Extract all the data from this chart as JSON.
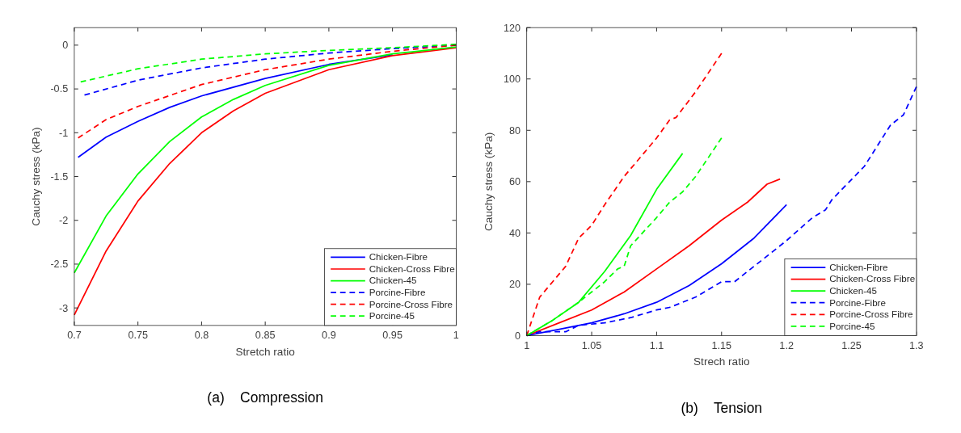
{
  "chart_data": [
    {
      "type": "line",
      "title": "(a)    Compression",
      "xlabel": "Stretch ratio",
      "ylabel": "Cauchy stress (kPa)",
      "xlim": [
        0.7,
        1
      ],
      "xticks": [
        0.7,
        0.75,
        0.8,
        0.85,
        0.9,
        0.95,
        1
      ],
      "ylim": [
        -3.2,
        0.2
      ],
      "yticks": [
        -3,
        -2.5,
        -2,
        -1.5,
        -1,
        -0.5,
        0
      ],
      "legend": "bottom right",
      "grid": false,
      "series": [
        {
          "name": "Chicken-Fibre",
          "color": "#0000ff",
          "line_style": "solid",
          "x": [
            0.703,
            0.725,
            0.75,
            0.775,
            0.8,
            0.85,
            0.9,
            0.95
          ],
          "values": [
            -1.28,
            -1.05,
            -0.87,
            -0.71,
            -0.58,
            -0.38,
            -0.22,
            -0.11
          ]
        },
        {
          "name": "Chicken-Cross Fibre",
          "color": "#ff0000",
          "line_style": "solid",
          "x": [
            0.7,
            0.725,
            0.75,
            0.775,
            0.8,
            0.825,
            0.85,
            0.9,
            0.95,
            1
          ],
          "values": [
            -3.08,
            -2.35,
            -1.78,
            -1.35,
            -1.0,
            -0.75,
            -0.55,
            -0.28,
            -0.12,
            -0.03
          ]
        },
        {
          "name": "Chicken-45",
          "color": "#00ff00",
          "line_style": "solid",
          "x": [
            0.7,
            0.725,
            0.75,
            0.775,
            0.8,
            0.825,
            0.85,
            0.9,
            0.95,
            1
          ],
          "values": [
            -2.6,
            -1.95,
            -1.47,
            -1.1,
            -0.82,
            -0.62,
            -0.46,
            -0.23,
            -0.1,
            -0.02
          ]
        },
        {
          "name": "Porcine-Fibre",
          "color": "#0000ff",
          "line_style": "dashed",
          "x": [
            0.708,
            0.75,
            0.8,
            0.85,
            0.9,
            0.95,
            1
          ],
          "values": [
            -0.57,
            -0.4,
            -0.26,
            -0.16,
            -0.09,
            -0.04,
            0
          ]
        },
        {
          "name": "Porcine-Cross Fibre",
          "color": "#ff0000",
          "line_style": "dashed",
          "x": [
            0.703,
            0.725,
            0.75,
            0.8,
            0.85,
            0.9,
            0.95,
            1
          ],
          "values": [
            -1.06,
            -0.85,
            -0.7,
            -0.45,
            -0.28,
            -0.16,
            -0.07,
            0
          ]
        },
        {
          "name": "Porcine-45",
          "color": "#00ff00",
          "line_style": "dashed",
          "x": [
            0.705,
            0.75,
            0.8,
            0.85,
            0.9,
            0.95,
            1
          ],
          "values": [
            -0.42,
            -0.27,
            -0.16,
            -0.1,
            -0.06,
            -0.03,
            0.01
          ]
        }
      ]
    },
    {
      "type": "line",
      "title": "(b)    Tension",
      "xlabel": "Strech ratio",
      "ylabel": "Cauchy stress (kPa)",
      "xlim": [
        1,
        1.3
      ],
      "xticks": [
        1,
        1.05,
        1.1,
        1.15,
        1.2,
        1.25,
        1.3
      ],
      "ylim": [
        0,
        120
      ],
      "yticks": [
        0,
        20,
        40,
        60,
        80,
        100,
        120
      ],
      "legend": "bottom right",
      "grid": false,
      "series": [
        {
          "name": "Chicken-Fibre",
          "color": "#0000ff",
          "line_style": "solid",
          "x": [
            1,
            1.025,
            1.05,
            1.075,
            1.1,
            1.125,
            1.15,
            1.175,
            1.2
          ],
          "values": [
            0,
            2.5,
            5,
            8.5,
            13,
            19.5,
            28,
            38,
            51
          ]
        },
        {
          "name": "Chicken-Cross Fibre",
          "color": "#ff0000",
          "line_style": "solid",
          "x": [
            1,
            1.025,
            1.05,
            1.075,
            1.1,
            1.125,
            1.15,
            1.17,
            1.185,
            1.195
          ],
          "values": [
            0,
            5,
            10,
            17,
            26,
            35,
            45,
            52,
            59,
            61
          ]
        },
        {
          "name": "Chicken-45",
          "color": "#00ff00",
          "line_style": "solid",
          "x": [
            1,
            1.02,
            1.04,
            1.06,
            1.08,
            1.1,
            1.12
          ],
          "values": [
            0,
            6,
            13,
            25,
            39,
            57,
            71
          ]
        },
        {
          "name": "Porcine-Fibre",
          "color": "#0000ff",
          "line_style": "dashed",
          "x": [
            1,
            1.01,
            1.03,
            1.04,
            1.06,
            1.08,
            1.1,
            1.11,
            1.13,
            1.15,
            1.16,
            1.18,
            1.2,
            1.22,
            1.23,
            1.235,
            1.26,
            1.28,
            1.29,
            1.3
          ],
          "values": [
            0,
            1.5,
            1.5,
            4,
            5,
            7,
            10,
            11,
            15,
            21,
            21,
            29,
            37,
            46,
            49,
            53,
            66,
            82,
            86,
            97
          ]
        },
        {
          "name": "Porcine-Cross Fibre",
          "color": "#ff0000",
          "line_style": "dashed",
          "x": [
            1,
            1.01,
            1.02,
            1.03,
            1.04,
            1.05,
            1.06,
            1.075,
            1.09,
            1.1,
            1.11,
            1.115,
            1.13,
            1.15
          ],
          "values": [
            0,
            15,
            21,
            27,
            38,
            43,
            51,
            62,
            71,
            77,
            84,
            85,
            95,
            110
          ]
        },
        {
          "name": "Porcine-45",
          "color": "#00ff00",
          "line_style": "dashed",
          "x": [
            1,
            1.02,
            1.04,
            1.06,
            1.07,
            1.075,
            1.08,
            1.1,
            1.11,
            1.12,
            1.13,
            1.15
          ],
          "values": [
            0,
            6,
            13,
            21,
            26,
            27,
            35,
            46,
            52,
            56,
            62,
            77
          ]
        }
      ]
    }
  ]
}
